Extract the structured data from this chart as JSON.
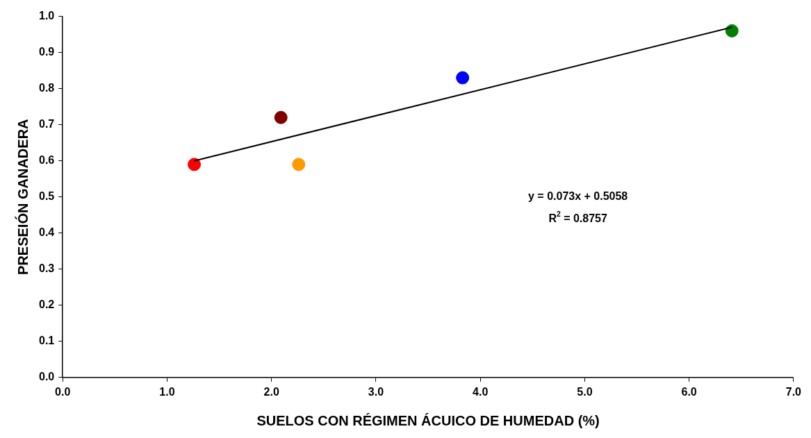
{
  "chart_data": {
    "type": "scatter",
    "xlabel": "SUELOS CON RÉGIMEN ÁCUICO DE HUMEDAD (%)",
    "ylabel": "PRESEIÓN GANADERA",
    "xlim": [
      0,
      7
    ],
    "xticks": [
      {
        "value": 0,
        "label": "0.0"
      },
      {
        "value": 1,
        "label": "1.0"
      },
      {
        "value": 2,
        "label": "2.0"
      },
      {
        "value": 3,
        "label": "3.0"
      },
      {
        "value": 4,
        "label": "4.0"
      },
      {
        "value": 5,
        "label": "5.0"
      },
      {
        "value": 6,
        "label": "6.0"
      },
      {
        "value": 7,
        "label": "7.0"
      }
    ],
    "ylim": [
      0,
      1
    ],
    "yticks": [
      {
        "value": 0,
        "label": "0.0"
      },
      {
        "value": 0.1,
        "label": "0.1"
      },
      {
        "value": 0.2,
        "label": "0.2"
      },
      {
        "value": 0.3,
        "label": "0.3"
      },
      {
        "value": 0.4,
        "label": "0.4"
      },
      {
        "value": 0.5,
        "label": "0.5"
      },
      {
        "value": 0.6,
        "label": "0.6"
      },
      {
        "value": 0.7,
        "label": "0.7"
      },
      {
        "value": 0.8,
        "label": "0.8"
      },
      {
        "value": 0.9,
        "label": "0.9"
      },
      {
        "value": 1,
        "label": "1.0"
      }
    ],
    "marker": "circle",
    "grid": false,
    "legend": false,
    "series": [
      {
        "x": [
          1.26,
          2.09,
          2.26,
          3.83,
          6.41
        ],
        "values": [
          0.59,
          0.72,
          0.59,
          0.83,
          0.96
        ],
        "colors": [
          "#ff0000",
          "#800000",
          "#ff9900",
          "#0000ff",
          "#008000"
        ]
      },
      {
        "type": "line",
        "x": [
          1.26,
          6.41
        ],
        "values": [
          0.6,
          0.97
        ],
        "color": "#000000",
        "marker": "none"
      }
    ],
    "annotations": [
      "y = 0.073x + 0.5058",
      "R$^{2}$ = 0.8757"
    ]
  }
}
